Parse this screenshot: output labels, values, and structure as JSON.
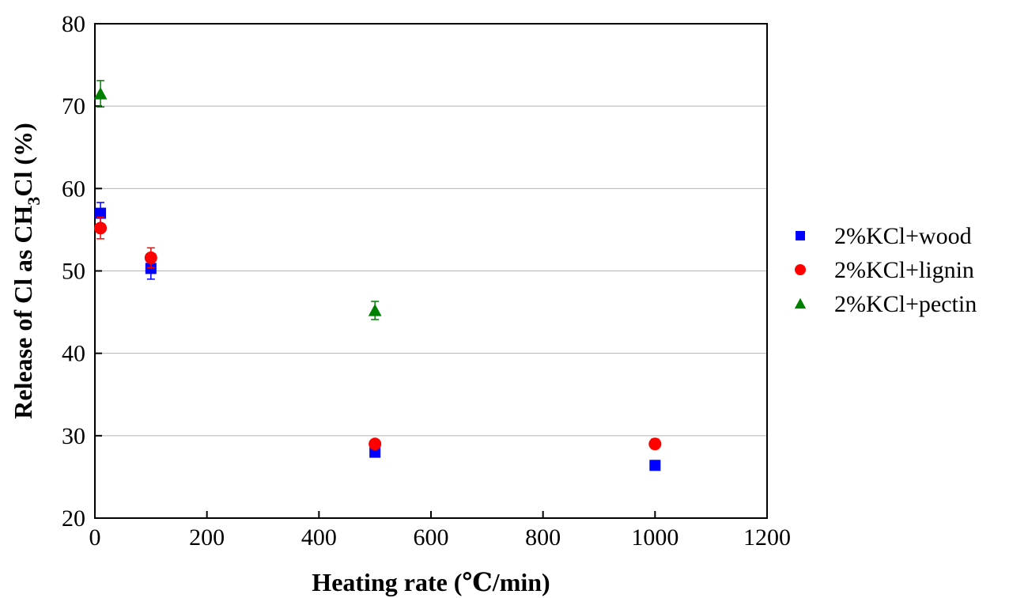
{
  "chart_data": {
    "type": "scatter",
    "xlabel": "Heating rate (℃/min)",
    "ylabel": {
      "prefix": "Release of Cl as CH",
      "subscript": "3",
      "suffix": "Cl (%)"
    },
    "xlim": [
      0,
      1200
    ],
    "ylim": [
      20,
      80
    ],
    "xticks": [
      0,
      200,
      400,
      600,
      800,
      1000,
      1200
    ],
    "yticks": [
      20,
      30,
      40,
      50,
      60,
      70,
      80
    ],
    "grid": "horizontal",
    "legend_position": "right",
    "series": [
      {
        "name": "2%KCl+wood",
        "marker": "square",
        "color": "#0000ff",
        "points": [
          {
            "x": 10,
            "y": 57.0,
            "err": 1.3
          },
          {
            "x": 100,
            "y": 50.3,
            "err": 1.3
          },
          {
            "x": 500,
            "y": 28.0,
            "err": 0.5
          },
          {
            "x": 1000,
            "y": 26.4,
            "err": 0.5
          }
        ]
      },
      {
        "name": "2%KCl+lignin",
        "marker": "circle",
        "color": "#ff0000",
        "points": [
          {
            "x": 10,
            "y": 55.2,
            "err": 1.3
          },
          {
            "x": 100,
            "y": 51.6,
            "err": 1.2
          },
          {
            "x": 500,
            "y": 29.0,
            "err": 0.5
          },
          {
            "x": 1000,
            "y": 29.0,
            "err": 0.6
          }
        ]
      },
      {
        "name": "2%KCl+pectin",
        "marker": "triangle",
        "color": "#008000",
        "points": [
          {
            "x": 10,
            "y": 71.5,
            "err": 1.6
          },
          {
            "x": 500,
            "y": 45.2,
            "err": 1.1
          }
        ]
      }
    ]
  }
}
